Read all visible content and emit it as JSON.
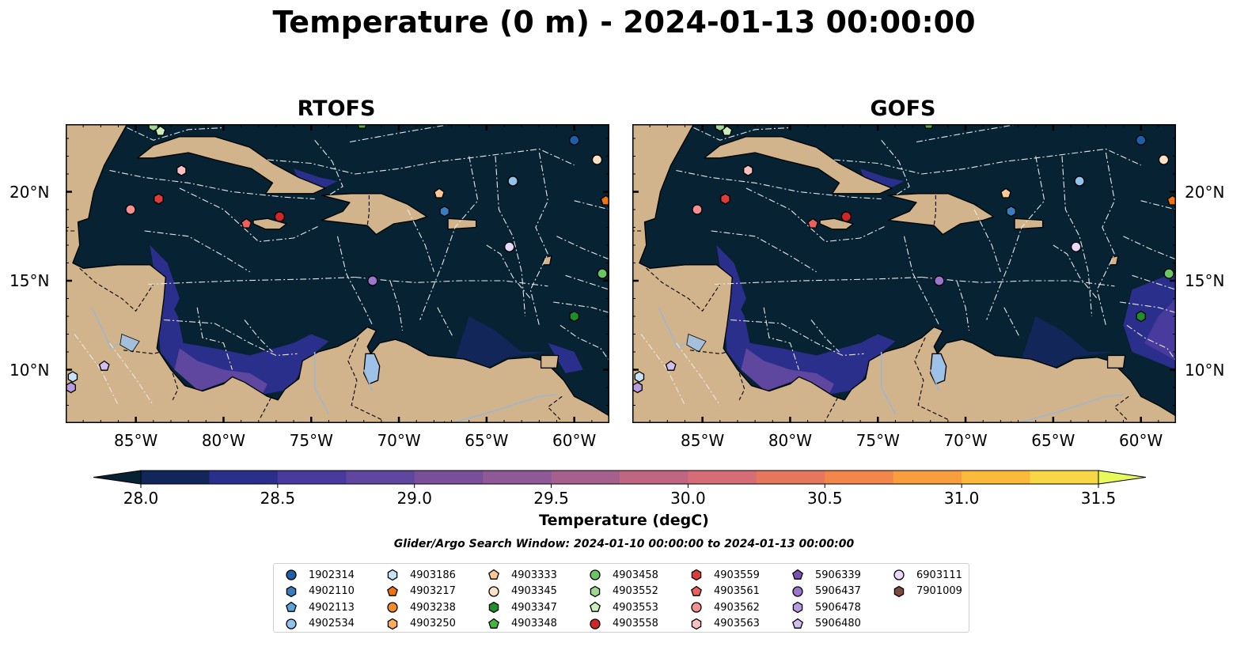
{
  "title": "Temperature (0 m) - 2024-01-13 00:00:00",
  "panels": [
    {
      "title": "RTOFS",
      "ocean_color": "#062233",
      "land_color": "#d2b48c"
    },
    {
      "title": "GOFS",
      "ocean_color": "#062233",
      "land_color": "#d2b48c"
    }
  ],
  "map_extent": {
    "lon": [
      -89,
      -58
    ],
    "lat": [
      7,
      23.8
    ]
  },
  "axes": {
    "lon_ticks": [
      "85°W",
      "80°W",
      "75°W",
      "70°W",
      "65°W",
      "60°W"
    ],
    "lat_ticks": [
      "20°N",
      "15°N",
      "10°N"
    ]
  },
  "colorbar": {
    "label": "Temperature (degC)",
    "min": 28.0,
    "max": 31.5,
    "ticks": [
      "28.0",
      "28.5",
      "29.0",
      "29.5",
      "30.0",
      "30.5",
      "31.0",
      "31.5"
    ],
    "colors": [
      "#062233",
      "#13265a",
      "#2b2f8c",
      "#493b9d",
      "#5f469f",
      "#7a4f9a",
      "#8f5896",
      "#a6608d",
      "#bf6683",
      "#d56c76",
      "#e7765f",
      "#f3864b",
      "#f99e3e",
      "#fbba39",
      "#f7d745",
      "#e8fa5b"
    ]
  },
  "search_window": "Glider/Argo Search Window: 2024-01-10 00:00:00 to 2024-01-13 00:00:00",
  "legend": [
    {
      "id": "1902314",
      "marker": "circle",
      "color": "#1f5ea8"
    },
    {
      "id": "4902110",
      "marker": "hexagon",
      "color": "#3a7cc0"
    },
    {
      "id": "4902113",
      "marker": "pentagon",
      "color": "#5aa3de"
    },
    {
      "id": "4902534",
      "marker": "circle",
      "color": "#93c3ea"
    },
    {
      "id": "4903186",
      "marker": "hexagon",
      "color": "#c6e2f6"
    },
    {
      "id": "4903217",
      "marker": "pentagon",
      "color": "#ef7310"
    },
    {
      "id": "4903238",
      "marker": "circle",
      "color": "#f58d26"
    },
    {
      "id": "4903250",
      "marker": "hexagon",
      "color": "#fbab5a"
    },
    {
      "id": "4903333",
      "marker": "pentagon",
      "color": "#fcc896"
    },
    {
      "id": "4903345",
      "marker": "circle",
      "color": "#fde1c6"
    },
    {
      "id": "4903347",
      "marker": "hexagon",
      "color": "#1e8f2c"
    },
    {
      "id": "4903348",
      "marker": "pentagon",
      "color": "#43b644"
    },
    {
      "id": "4903458",
      "marker": "circle",
      "color": "#6cc564"
    },
    {
      "id": "4903552",
      "marker": "hexagon",
      "color": "#9ed98f"
    },
    {
      "id": "4903553",
      "marker": "pentagon",
      "color": "#c9efbd"
    },
    {
      "id": "4903558",
      "marker": "circle",
      "color": "#d22525"
    },
    {
      "id": "4903559",
      "marker": "hexagon",
      "color": "#de3b3b"
    },
    {
      "id": "4903561",
      "marker": "pentagon",
      "color": "#ee5f5f"
    },
    {
      "id": "4903562",
      "marker": "circle",
      "color": "#f59090"
    },
    {
      "id": "4903563",
      "marker": "hexagon",
      "color": "#f9c0c0"
    },
    {
      "id": "5906339",
      "marker": "pentagon",
      "color": "#7b52b4"
    },
    {
      "id": "5906437",
      "marker": "circle",
      "color": "#9b76cc"
    },
    {
      "id": "5906478",
      "marker": "hexagon",
      "color": "#b79ce0"
    },
    {
      "id": "5906480",
      "marker": "pentagon",
      "color": "#d2bdef"
    },
    {
      "id": "6903111",
      "marker": "circle",
      "color": "#ead8fb"
    },
    {
      "id": "7901009",
      "marker": "hexagon",
      "color": "#7a4a3c"
    }
  ],
  "floats": [
    {
      "id": "1902314",
      "lon": -60.0,
      "lat": 22.9
    },
    {
      "id": "4903345",
      "lon": -58.7,
      "lat": 21.8
    },
    {
      "id": "4902534",
      "lon": -63.5,
      "lat": 20.6
    },
    {
      "id": "4903217",
      "lon": -58.2,
      "lat": 19.5
    },
    {
      "id": "4903333",
      "lon": -67.7,
      "lat": 19.9
    },
    {
      "id": "4902110",
      "lon": -67.4,
      "lat": 18.9
    },
    {
      "id": "4903558",
      "lon": -76.8,
      "lat": 18.6
    },
    {
      "id": "4903561",
      "lon": -78.7,
      "lat": 18.2
    },
    {
      "id": "4903562",
      "lon": -85.3,
      "lat": 19.0
    },
    {
      "id": "4903559",
      "lon": -83.7,
      "lat": 19.6
    },
    {
      "id": "4903563",
      "lon": -82.4,
      "lat": 21.2
    },
    {
      "id": "4903553",
      "lon": -83.6,
      "lat": 23.4
    },
    {
      "id": "4903552",
      "lon": -84.0,
      "lat": 23.7
    },
    {
      "id": "4903348",
      "lon": -72.1,
      "lat": 23.8
    },
    {
      "id": "6903111",
      "lon": -63.7,
      "lat": 16.9
    },
    {
      "id": "5906437",
      "lon": -71.5,
      "lat": 15.0
    },
    {
      "id": "4903458",
      "lon": -58.4,
      "lat": 15.4
    },
    {
      "id": "4903347",
      "lon": -60.0,
      "lat": 13.0
    },
    {
      "id": "5906480",
      "lon": -86.8,
      "lat": 10.2
    },
    {
      "id": "4903186",
      "lon": -88.6,
      "lat": 9.6
    },
    {
      "id": "5906478",
      "lon": -88.7,
      "lat": 9.0
    }
  ]
}
